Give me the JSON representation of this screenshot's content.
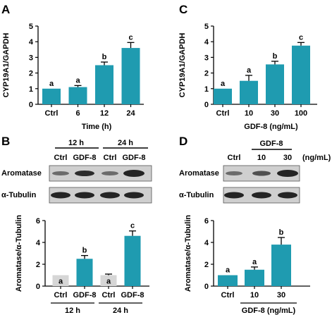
{
  "panels": {
    "A": {
      "letter": "A"
    },
    "B": {
      "letter": "B",
      "row_labels": [
        "Aromatase",
        "α-Tubulin"
      ],
      "time_labels": [
        "12 h",
        "24 h"
      ],
      "lane_labels": [
        "Ctrl",
        "GDF-8",
        "Ctrl",
        "GDF-8"
      ]
    },
    "C": {
      "letter": "C"
    },
    "D": {
      "letter": "D",
      "row_labels": [
        "Aromatase",
        "α-Tubulin"
      ],
      "group_label": "GDF-8",
      "lane_labels": [
        "Ctrl",
        "10",
        "30"
      ],
      "unit": "(ng/mL)"
    }
  },
  "colors": {
    "bar": "#1f9bb0",
    "ctrl_bar": "#d6d6d6",
    "error": "#000000"
  },
  "chart_data": [
    {
      "id": "A",
      "type": "bar",
      "ylabel": "CYP19A1/GAPDH",
      "xlabel": "Time (h)",
      "categories": [
        "Ctrl",
        "6",
        "12",
        "24"
      ],
      "values": [
        1.0,
        1.1,
        2.5,
        3.6
      ],
      "errors": [
        0.0,
        0.1,
        0.2,
        0.35
      ],
      "sig_letters": [
        "a",
        "a",
        "b",
        "c"
      ],
      "ylim": [
        0,
        5
      ],
      "yticks": [
        0,
        1,
        2,
        3,
        4,
        5
      ]
    },
    {
      "id": "C",
      "type": "bar",
      "ylabel": "CYP19A1/GAPDH",
      "xlabel": "GDF-8 (ng/mL)",
      "categories": [
        "Ctrl",
        "10",
        "30",
        "100"
      ],
      "values": [
        1.0,
        1.5,
        2.55,
        3.75
      ],
      "errors": [
        0.0,
        0.35,
        0.2,
        0.2
      ],
      "sig_letters": [
        "a",
        "a",
        "b",
        "c"
      ],
      "ylim": [
        0,
        5
      ],
      "yticks": [
        0,
        1,
        2,
        3,
        4,
        5
      ]
    },
    {
      "id": "B",
      "type": "bar",
      "ylabel": "Aromatase/α-Tubulin",
      "categories": [
        "Ctrl",
        "GDF-8",
        "Ctrl",
        "GDF-8"
      ],
      "group_labels": [
        "12 h",
        "24 h"
      ],
      "values": [
        1.0,
        2.5,
        1.0,
        4.6
      ],
      "errors": [
        0.0,
        0.3,
        0.1,
        0.45
      ],
      "sig_letters": [
        "a",
        "b",
        "a",
        "c"
      ],
      "ctrl_bars": [
        true,
        false,
        true,
        false
      ],
      "ylim": [
        0,
        6
      ],
      "yticks": [
        0,
        2,
        4,
        6
      ]
    },
    {
      "id": "D",
      "type": "bar",
      "ylabel": "Aromatase/α-Tubulin",
      "categories": [
        "Ctrl",
        "10",
        "30"
      ],
      "group_label": "GDF-8 (ng/mL)",
      "values": [
        1.0,
        1.5,
        3.8
      ],
      "errors": [
        0.0,
        0.25,
        0.65
      ],
      "sig_letters": [
        "a",
        "a",
        "b"
      ],
      "ylim": [
        0,
        6
      ],
      "yticks": [
        0,
        2,
        4,
        6
      ]
    }
  ]
}
